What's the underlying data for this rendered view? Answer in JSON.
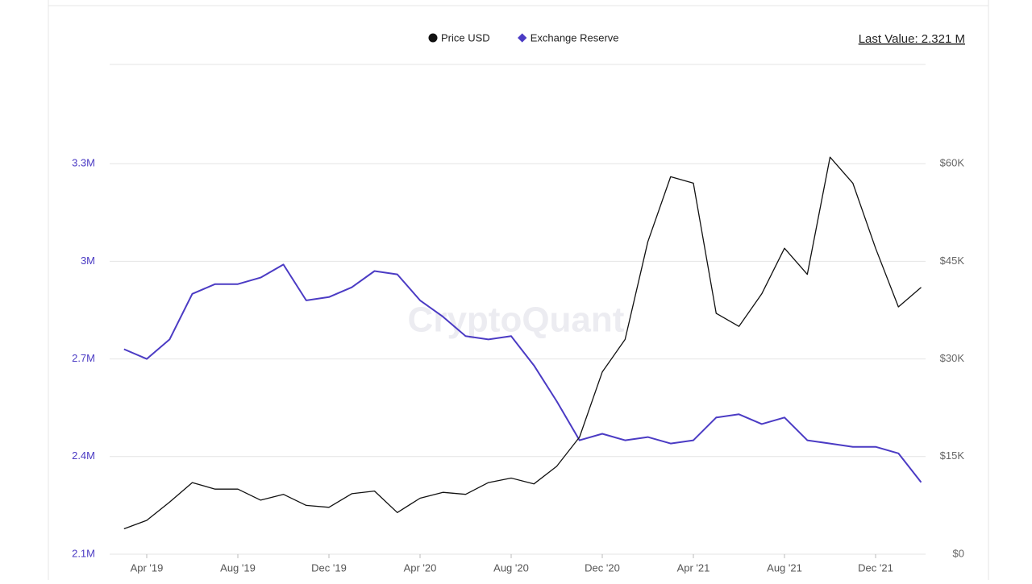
{
  "chart_data": {
    "type": "line",
    "annotation": "Last Value: 2.321 M",
    "watermark": "CryptoQuant",
    "x": [
      "2019-03",
      "2019-04",
      "2019-05",
      "2019-06",
      "2019-07",
      "2019-08",
      "2019-09",
      "2019-10",
      "2019-11",
      "2019-12",
      "2020-01",
      "2020-02",
      "2020-03",
      "2020-04",
      "2020-05",
      "2020-06",
      "2020-07",
      "2020-08",
      "2020-09",
      "2020-10",
      "2020-11",
      "2020-12",
      "2021-01",
      "2021-02",
      "2021-03",
      "2021-04",
      "2021-05",
      "2021-06",
      "2021-07",
      "2021-08",
      "2021-09",
      "2021-10",
      "2021-11",
      "2021-12",
      "2022-01",
      "2022-02"
    ],
    "series": [
      {
        "name": "Price USD",
        "color": "#111111",
        "axis": "y2",
        "marker": "circle",
        "values": [
          3900,
          5200,
          8000,
          11000,
          10000,
          10000,
          8300,
          9200,
          7500,
          7200,
          9300,
          9700,
          6400,
          8600,
          9500,
          9200,
          11000,
          11700,
          10800,
          13500,
          18000,
          28000,
          33000,
          48000,
          58000,
          57000,
          37000,
          35000,
          40000,
          47000,
          43000,
          61000,
          57000,
          47000,
          38000,
          41000
        ]
      },
      {
        "name": "Exchange Reserve",
        "color": "#4b3bc4",
        "marker": "diamond",
        "values": [
          2730000,
          2700000,
          2760000,
          2900000,
          2930000,
          2930000,
          2950000,
          2990000,
          2880000,
          2890000,
          2920000,
          2970000,
          2960000,
          2880000,
          2830000,
          2770000,
          2760000,
          2770000,
          2680000,
          2570000,
          2450000,
          2470000,
          2450000,
          2460000,
          2440000,
          2450000,
          2520000,
          2530000,
          2500000,
          2520000,
          2450000,
          2440000,
          2430000,
          2430000,
          2410000,
          2321000
        ]
      }
    ],
    "ylim": [
      2100000,
      3600000
    ],
    "yticks": [
      {
        "value": 2100000,
        "label": "2.1M"
      },
      {
        "value": 2400000,
        "label": "2.4M"
      },
      {
        "value": 2700000,
        "label": "2.7M"
      },
      {
        "value": 3000000,
        "label": "3M"
      },
      {
        "value": 3300000,
        "label": "3.3M"
      }
    ],
    "y2lim": [
      0,
      75000
    ],
    "y2ticks": [
      {
        "value": 0,
        "label": "$0"
      },
      {
        "value": 15000,
        "label": "$15K"
      },
      {
        "value": 30000,
        "label": "$30K"
      },
      {
        "value": 45000,
        "label": "$45K"
      },
      {
        "value": 60000,
        "label": "$60K"
      }
    ],
    "xticks": [
      {
        "value": "2019-04",
        "label": "Apr '19"
      },
      {
        "value": "2019-08",
        "label": "Aug '19"
      },
      {
        "value": "2019-12",
        "label": "Dec '19"
      },
      {
        "value": "2020-04",
        "label": "Apr '20"
      },
      {
        "value": "2020-08",
        "label": "Aug '20"
      },
      {
        "value": "2020-12",
        "label": "Dec '20"
      },
      {
        "value": "2021-04",
        "label": "Apr '21"
      },
      {
        "value": "2021-08",
        "label": "Aug '21"
      },
      {
        "value": "2021-12",
        "label": "Dec '21"
      }
    ],
    "grid": true,
    "legend": "top"
  }
}
